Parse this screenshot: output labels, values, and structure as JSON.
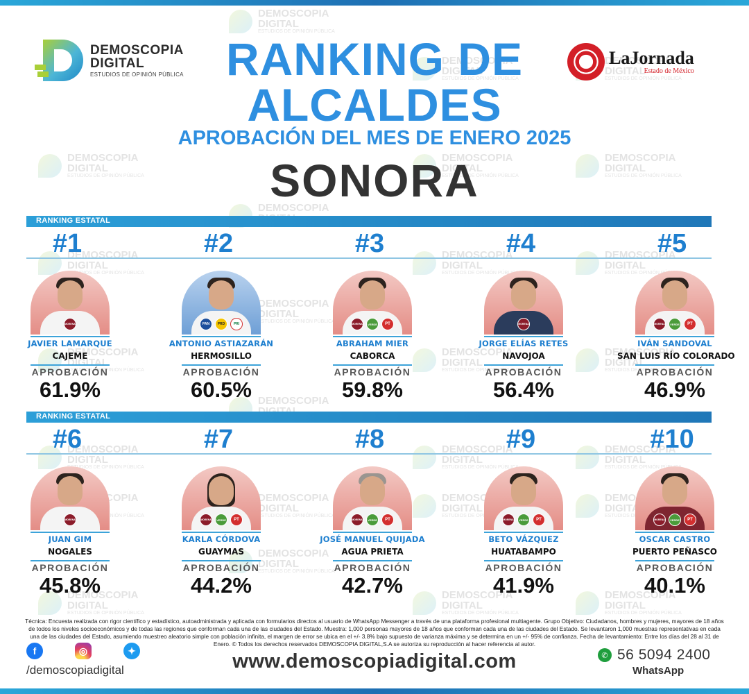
{
  "header": {
    "left_logo": {
      "name": "DEMOSCOPIA",
      "name2": "DIGITAL",
      "sub": "ESTUDIOS DE OPINIÓN PÚBLICA"
    },
    "right_logo": {
      "name": "LaJornada",
      "sub": "Estado de México"
    },
    "title_line1": "RANKING DE",
    "title_line2": "ALCALDES",
    "subtitle": "APROBACIÓN DEL MES DE ENERO 2025",
    "state": "SONORA"
  },
  "watermark": {
    "line1": "DEMOSCOPIA",
    "line2": "DIGITAL",
    "line3": "ESTUDIOS DE OPINIÓN PÚBLICA"
  },
  "strip_label": "RANKING ESTATAL",
  "approval_label": "APROBACIÓN",
  "mayors": [
    {
      "rank": "#1",
      "name": "JAVIER LAMARQUE",
      "city": "CAJEME",
      "approval": "61.9%",
      "approval_value": 61.9,
      "parties": [
        "MORENA"
      ]
    },
    {
      "rank": "#2",
      "name": "ANTONIO ASTIAZARÁN",
      "city": "HERMOSILLO",
      "approval": "60.5%",
      "approval_value": 60.5,
      "parties": [
        "PAN",
        "PRD",
        "PRI"
      ]
    },
    {
      "rank": "#3",
      "name": "ABRAHAM MIER",
      "city": "CABORCA",
      "approval": "59.8%",
      "approval_value": 59.8,
      "parties": [
        "MORENA",
        "VERDE",
        "PT"
      ]
    },
    {
      "rank": "#4",
      "name": "JORGE ELÍAS RETES",
      "city": "NAVOJOA",
      "approval": "56.4%",
      "approval_value": 56.4,
      "parties": [
        "MORENA"
      ]
    },
    {
      "rank": "#5",
      "name": "IVÁN SANDOVAL",
      "city": "SAN LUIS RÍO COLORADO",
      "approval": "46.9%",
      "approval_value": 46.9,
      "parties": [
        "MORENA",
        "VERDE",
        "PT"
      ]
    },
    {
      "rank": "#6",
      "name": "JUAN GIM",
      "city": "NOGALES",
      "approval": "45.8%",
      "approval_value": 45.8,
      "parties": [
        "MORENA"
      ]
    },
    {
      "rank": "#7",
      "name": "KARLA CÓRDOVA",
      "city": "GUAYMAS",
      "approval": "44.2%",
      "approval_value": 44.2,
      "parties": [
        "MORENA",
        "VERDE",
        "PT"
      ]
    },
    {
      "rank": "#8",
      "name": "JOSÉ MANUEL QUIJADA",
      "city": "AGUA PRIETA",
      "approval": "42.7%",
      "approval_value": 42.7,
      "parties": [
        "MORENA",
        "VERDE",
        "PT"
      ]
    },
    {
      "rank": "#9",
      "name": "BETO VÁZQUEZ",
      "city": "HUATABAMPO",
      "approval": "41.9%",
      "approval_value": 41.9,
      "parties": [
        "MORENA",
        "VERDE",
        "PT"
      ]
    },
    {
      "rank": "#10",
      "name": "OSCAR CASTRO",
      "city": "PUERTO PEÑASCO",
      "approval": "40.1%",
      "approval_value": 40.1,
      "parties": [
        "MORENA",
        "VERDE",
        "PT"
      ]
    }
  ],
  "footer": {
    "technical_note": "Técnica: Encuesta realizada con rigor científico y estadístico, autoadministrada y aplicada con formularios directos al usuario de WhatsApp Messenger a través de una plataforma profesional multiagente. Grupo Objetivo: Ciudadanos, hombres y mujeres, mayores de 18 años de todos los niveles socioeconómicos y de todas las regiones que conforman cada una de las ciudades del Estado. Muestra: 1,000 personas mayores de 18 años que conforman cada una de las ciudades del Estado. Se levantaron 1,000 muestras representativas en cada una de las ciudades del Estado, asumiendo muestreo aleatorio simple con población infinita, el margen de error se ubica en el +/- 3.8% bajo supuesto de varianza máxima y se determina en un +/- 95% de confianza. Fecha de levantamiento: Entre los días del 28 al 31 de Enero. © Todos los derechos reservados DEMOSCOPIA DIGITAL,S.A se autoriza su reproducción al hacer referencia al autor.",
    "social_handle": "/demoscopiadigital",
    "website": "www.demoscopiadigital.com",
    "phone": "56 5094 2400",
    "whatsapp_label": "WhatsApp"
  },
  "colors": {
    "primary_blue": "#2e8fe0",
    "rank_blue": "#1e7fcf",
    "dark_text": "#333333"
  }
}
